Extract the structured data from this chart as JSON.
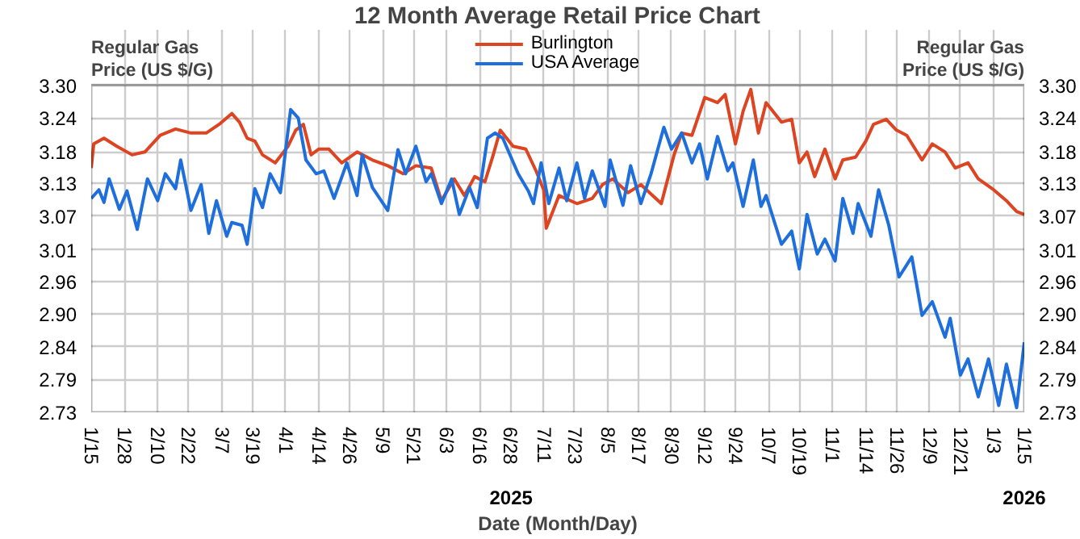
{
  "chart_data": {
    "type": "line",
    "title": "12 Month Average Retail Price Chart",
    "xlabel": "Date (Month/Day)",
    "ylabel": "Regular Gas\nPrice (US $/G)",
    "y2label": "Regular Gas\nPrice (US $/G)",
    "annotations": [
      "2025",
      "2026"
    ],
    "xlim": [
      "2025-01-15",
      "2026-01-15"
    ],
    "xticks": [
      {
        "value": "2025-01-15",
        "label": "1/15"
      },
      {
        "value": "2025-01-28",
        "label": "1/28"
      },
      {
        "value": "2025-02-10",
        "label": "2/10"
      },
      {
        "value": "2025-02-22",
        "label": "2/22"
      },
      {
        "value": "2025-03-07",
        "label": "3/7"
      },
      {
        "value": "2025-03-19",
        "label": "3/19"
      },
      {
        "value": "2025-04-01",
        "label": "4/1"
      },
      {
        "value": "2025-04-14",
        "label": "4/14"
      },
      {
        "value": "2025-04-26",
        "label": "4/26"
      },
      {
        "value": "2025-05-09",
        "label": "5/9"
      },
      {
        "value": "2025-05-21",
        "label": "5/21"
      },
      {
        "value": "2025-06-03",
        "label": "6/3"
      },
      {
        "value": "2025-06-16",
        "label": "6/16"
      },
      {
        "value": "2025-06-28",
        "label": "6/28"
      },
      {
        "value": "2025-07-11",
        "label": "7/11"
      },
      {
        "value": "2025-07-23",
        "label": "7/23"
      },
      {
        "value": "2025-08-05",
        "label": "8/5"
      },
      {
        "value": "2025-08-17",
        "label": "8/17"
      },
      {
        "value": "2025-08-30",
        "label": "8/30"
      },
      {
        "value": "2025-09-12",
        "label": "9/12"
      },
      {
        "value": "2025-09-24",
        "label": "9/24"
      },
      {
        "value": "2025-10-07",
        "label": "10/7"
      },
      {
        "value": "2025-10-19",
        "label": "10/19"
      },
      {
        "value": "2025-11-01",
        "label": "11/1"
      },
      {
        "value": "2025-11-14",
        "label": "11/14"
      },
      {
        "value": "2025-11-26",
        "label": "11/26"
      },
      {
        "value": "2025-12-09",
        "label": "12/9"
      },
      {
        "value": "2025-12-21",
        "label": "12/21"
      },
      {
        "value": "2026-01-03",
        "label": "1/3"
      },
      {
        "value": "2026-01-15",
        "label": "1/15"
      }
    ],
    "ylim": [
      2.73,
      3.3
    ],
    "yticks": [
      2.73,
      {
        "value": 2.787,
        "label": "2.79"
      },
      {
        "value": 2.844,
        "label": "2.84"
      },
      {
        "value": 2.901,
        "label": "2.90"
      },
      {
        "value": 2.958,
        "label": "2.96"
      },
      {
        "value": 3.013,
        "label": "3.01"
      },
      {
        "value": 3.072,
        "label": "3.07"
      },
      {
        "value": 3.129,
        "label": "3.13"
      },
      {
        "value": 3.184,
        "label": "3.18"
      },
      {
        "value": 3.243,
        "label": "3.24"
      },
      {
        "value": 3.3,
        "label": "3.30"
      }
    ],
    "y2lim": [
      2.73,
      3.3
    ],
    "y2ticks": [
      2.73,
      {
        "value": 2.787,
        "label": "2.79"
      },
      {
        "value": 2.844,
        "label": "2.84"
      },
      {
        "value": 2.901,
        "label": "2.90"
      },
      {
        "value": 2.958,
        "label": "2.96"
      },
      {
        "value": 3.013,
        "label": "3.01"
      },
      {
        "value": 3.072,
        "label": "3.07"
      },
      {
        "value": 3.129,
        "label": "3.13"
      },
      {
        "value": 3.184,
        "label": "3.18"
      },
      {
        "value": 3.243,
        "label": "3.24"
      },
      {
        "value": 3.3,
        "label": "3.30"
      }
    ],
    "grid": true,
    "legend": "top",
    "line_style": "solid",
    "series": [
      {
        "name": "Burlington",
        "color": "#dd4422",
        "x": [
          "2025-01-15",
          "2025-01-16",
          "2025-01-20",
          "2025-01-25",
          "2025-01-31",
          "2025-02-05",
          "2025-02-11",
          "2025-02-17",
          "2025-02-23",
          "2025-03-01",
          "2025-03-06",
          "2025-03-11",
          "2025-03-14",
          "2025-03-17",
          "2025-03-20",
          "2025-03-23",
          "2025-03-28",
          "2025-04-02",
          "2025-04-05",
          "2025-04-08",
          "2025-04-11",
          "2025-04-14",
          "2025-04-18",
          "2025-04-23",
          "2025-04-29",
          "2025-05-05",
          "2025-05-11",
          "2025-05-17",
          "2025-05-22",
          "2025-05-28",
          "2025-06-01",
          "2025-06-06",
          "2025-06-10",
          "2025-06-14",
          "2025-06-18",
          "2025-06-21",
          "2025-06-24",
          "2025-06-29",
          "2025-07-04",
          "2025-07-08",
          "2025-07-11",
          "2025-07-12",
          "2025-07-17",
          "2025-07-24",
          "2025-07-30",
          "2025-08-03",
          "2025-08-07",
          "2025-08-13",
          "2025-08-18",
          "2025-08-26",
          "2025-08-31",
          "2025-09-03",
          "2025-09-07",
          "2025-09-12",
          "2025-09-17",
          "2025-09-20",
          "2025-09-24",
          "2025-09-27",
          "2025-09-30",
          "2025-10-03",
          "2025-10-06",
          "2025-10-12",
          "2025-10-16",
          "2025-10-19",
          "2025-10-22",
          "2025-10-25",
          "2025-10-29",
          "2025-11-02",
          "2025-11-05",
          "2025-11-10",
          "2025-11-14",
          "2025-11-17",
          "2025-11-22",
          "2025-11-26",
          "2025-11-30",
          "2025-12-06",
          "2025-12-10",
          "2025-12-15",
          "2025-12-19",
          "2025-12-24",
          "2025-12-28",
          "2026-01-03",
          "2026-01-08",
          "2026-01-12",
          "2026-01-15"
        ],
        "values": [
          3.156,
          3.198,
          3.208,
          3.194,
          3.179,
          3.184,
          3.213,
          3.224,
          3.217,
          3.217,
          3.232,
          3.251,
          3.236,
          3.208,
          3.203,
          3.179,
          3.165,
          3.194,
          3.222,
          3.232,
          3.179,
          3.189,
          3.189,
          3.165,
          3.184,
          3.17,
          3.16,
          3.146,
          3.16,
          3.156,
          3.099,
          3.137,
          3.108,
          3.141,
          3.132,
          3.175,
          3.222,
          3.194,
          3.189,
          3.151,
          3.118,
          3.051,
          3.108,
          3.094,
          3.103,
          3.127,
          3.137,
          3.113,
          3.127,
          3.094,
          3.179,
          3.217,
          3.213,
          3.279,
          3.27,
          3.284,
          3.198,
          3.255,
          3.293,
          3.217,
          3.27,
          3.236,
          3.241,
          3.165,
          3.184,
          3.141,
          3.189,
          3.137,
          3.17,
          3.175,
          3.203,
          3.232,
          3.241,
          3.222,
          3.213,
          3.17,
          3.198,
          3.184,
          3.156,
          3.165,
          3.137,
          3.118,
          3.099,
          3.08,
          3.075
        ]
      },
      {
        "name": "USA Average",
        "color": "#1e6fdc",
        "x": [
          "2025-01-15",
          "2025-01-18",
          "2025-01-20",
          "2025-01-22",
          "2025-01-26",
          "2025-01-29",
          "2025-02-02",
          "2025-02-06",
          "2025-02-10",
          "2025-02-13",
          "2025-02-17",
          "2025-02-19",
          "2025-02-23",
          "2025-02-27",
          "2025-03-02",
          "2025-03-05",
          "2025-03-09",
          "2025-03-11",
          "2025-03-15",
          "2025-03-17",
          "2025-03-20",
          "2025-03-23",
          "2025-03-26",
          "2025-03-30",
          "2025-04-03",
          "2025-04-06",
          "2025-04-09",
          "2025-04-13",
          "2025-04-16",
          "2025-04-20",
          "2025-04-25",
          "2025-04-29",
          "2025-05-01",
          "2025-05-05",
          "2025-05-11",
          "2025-05-15",
          "2025-05-18",
          "2025-05-22",
          "2025-05-26",
          "2025-05-28",
          "2025-06-01",
          "2025-06-05",
          "2025-06-08",
          "2025-06-12",
          "2025-06-15",
          "2025-06-19",
          "2025-06-22",
          "2025-06-25",
          "2025-07-01",
          "2025-07-05",
          "2025-07-07",
          "2025-07-10",
          "2025-07-13",
          "2025-07-17",
          "2025-07-20",
          "2025-07-24",
          "2025-07-27",
          "2025-07-30",
          "2025-08-04",
          "2025-08-06",
          "2025-08-11",
          "2025-08-14",
          "2025-08-18",
          "2025-08-22",
          "2025-08-27",
          "2025-08-30",
          "2025-09-03",
          "2025-09-07",
          "2025-09-10",
          "2025-09-13",
          "2025-09-17",
          "2025-09-21",
          "2025-09-23",
          "2025-09-27",
          "2025-10-01",
          "2025-10-04",
          "2025-10-06",
          "2025-10-12",
          "2025-10-16",
          "2025-10-19",
          "2025-10-22",
          "2025-10-26",
          "2025-10-29",
          "2025-11-02",
          "2025-11-05",
          "2025-11-09",
          "2025-11-11",
          "2025-11-16",
          "2025-11-19",
          "2025-11-23",
          "2025-11-27",
          "2025-12-02",
          "2025-12-06",
          "2025-12-10",
          "2025-12-15",
          "2025-12-17",
          "2025-12-21",
          "2025-12-24",
          "2025-12-28",
          "2026-01-01",
          "2026-01-05",
          "2026-01-08",
          "2026-01-12",
          "2026-01-15"
        ],
        "values": [
          3.103,
          3.118,
          3.096,
          3.137,
          3.084,
          3.116,
          3.049,
          3.137,
          3.099,
          3.146,
          3.12,
          3.17,
          3.082,
          3.127,
          3.042,
          3.099,
          3.037,
          3.061,
          3.056,
          3.023,
          3.12,
          3.087,
          3.146,
          3.113,
          3.258,
          3.243,
          3.17,
          3.146,
          3.151,
          3.103,
          3.165,
          3.108,
          3.179,
          3.122,
          3.082,
          3.188,
          3.146,
          3.194,
          3.132,
          3.146,
          3.094,
          3.137,
          3.075,
          3.122,
          3.087,
          3.208,
          3.217,
          3.208,
          3.146,
          3.116,
          3.094,
          3.165,
          3.094,
          3.156,
          3.099,
          3.165,
          3.103,
          3.151,
          3.089,
          3.17,
          3.091,
          3.16,
          3.094,
          3.146,
          3.227,
          3.189,
          3.217,
          3.165,
          3.198,
          3.137,
          3.211,
          3.151,
          3.165,
          3.089,
          3.17,
          3.089,
          3.108,
          3.023,
          3.046,
          2.98,
          3.075,
          3.006,
          3.032,
          2.994,
          3.103,
          3.042,
          3.094,
          3.037,
          3.118,
          3.056,
          2.966,
          3.001,
          2.899,
          2.923,
          2.861,
          2.894,
          2.795,
          2.823,
          2.757,
          2.823,
          2.742,
          2.814,
          2.738,
          2.852
        ]
      }
    ]
  }
}
